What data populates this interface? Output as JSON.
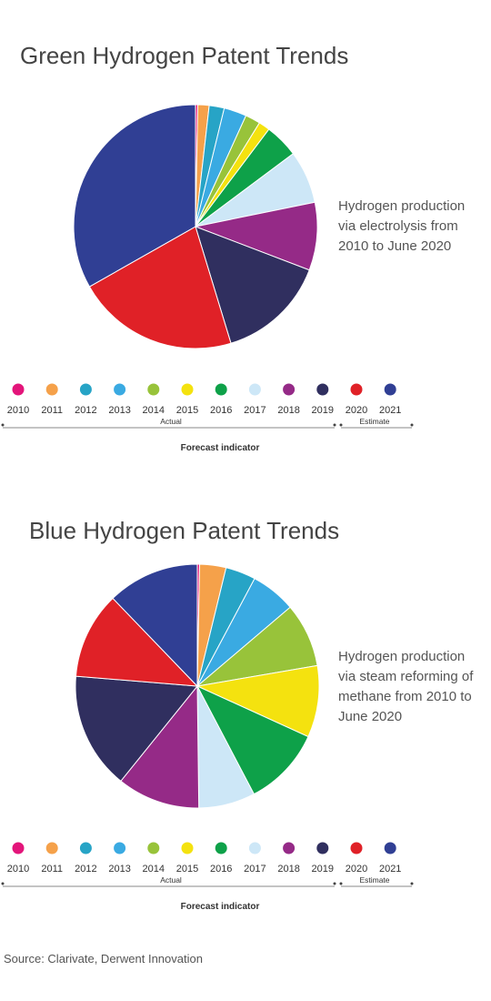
{
  "palette": [
    "#e3157a",
    "#f5a14a",
    "#27a4c6",
    "#3aaae2",
    "#98c33a",
    "#f4e20f",
    "#0ea149",
    "#cde7f7",
    "#952a87",
    "#302f5f",
    "#e02127",
    "#303f94"
  ],
  "source": "Source: Clarivate, Derwent Innovation",
  "chart_data": [
    {
      "type": "pie",
      "title": "Green Hydrogen Patent Trends",
      "description": "Hydrogen production via electrolysis from 2010 to June 2020",
      "categories": [
        "2010",
        "2011",
        "2012",
        "2013",
        "2014",
        "2015",
        "2016",
        "2017",
        "2018",
        "2019",
        "2020",
        "2021"
      ],
      "values": [
        0.3,
        1.5,
        2.0,
        3.0,
        2.0,
        1.5,
        4.5,
        7.0,
        9.0,
        14.5,
        21.5,
        33.2
      ],
      "legend": {
        "actual_label": "Actual",
        "estimate_label": "Estimate",
        "forecast_label": "Forecast indicator"
      }
    },
    {
      "type": "pie",
      "title": "Blue Hydrogen Patent Trends",
      "description": "Hydrogen production via steam reforming of methane from 2010 to June 2020",
      "categories": [
        "2010",
        "2011",
        "2012",
        "2013",
        "2014",
        "2015",
        "2016",
        "2017",
        "2018",
        "2019",
        "2020",
        "2021"
      ],
      "values": [
        0.3,
        3.5,
        4.0,
        6.0,
        8.5,
        9.5,
        10.5,
        7.5,
        11.0,
        15.5,
        11.5,
        12.2
      ],
      "legend": {
        "actual_label": "Actual",
        "estimate_label": "Estimate",
        "forecast_label": "Forecast indicator"
      }
    }
  ]
}
